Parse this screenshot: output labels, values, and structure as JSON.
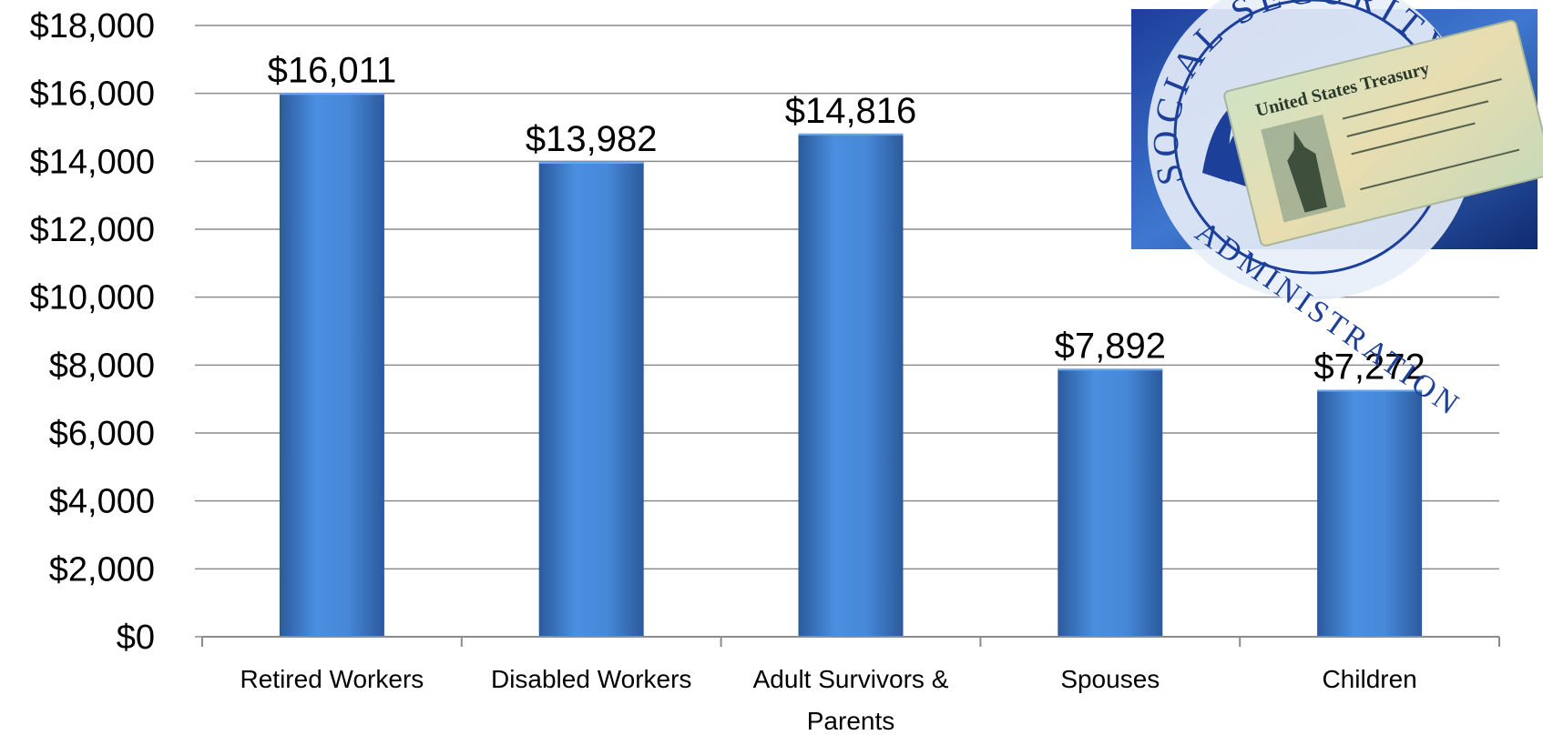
{
  "chart_data": {
    "type": "bar",
    "categories": [
      "Retired Workers",
      "Disabled Workers",
      "Adult Survivors & Parents",
      "Spouses",
      "Children"
    ],
    "category_label_lines": [
      [
        "Retired Workers"
      ],
      [
        "Disabled Workers"
      ],
      [
        "Adult Survivors &",
        "Parents"
      ],
      [
        "Spouses"
      ],
      [
        "Children"
      ]
    ],
    "values": [
      16011,
      13982,
      14816,
      7892,
      7272
    ],
    "data_labels": [
      "$16,011",
      "$13,982",
      "$14,816",
      "$7,892",
      "$7,272"
    ],
    "ylim": [
      0,
      18000
    ],
    "yticks": [
      0,
      2000,
      4000,
      6000,
      8000,
      10000,
      12000,
      14000,
      16000,
      18000
    ],
    "ytick_labels": [
      "$0",
      "$2,000",
      "$4,000",
      "$6,000",
      "$8,000",
      "$10,000",
      "$12,000",
      "$14,000",
      "$16,000",
      "$18,000"
    ],
    "grid": true,
    "title": "",
    "xlabel": "",
    "ylabel": "",
    "colors": {
      "bar_light": "#4a8fe0",
      "bar_dark": "#2f62a8",
      "grid": "#8c8c8c",
      "text": "#000000"
    }
  },
  "inset_image": {
    "description_icon": "social-security-check-icon",
    "seal_text_top": "SOCIAL SECURITY",
    "seal_text_bottom": "ADMINISTRATION",
    "check_header": "United States Treasury"
  }
}
